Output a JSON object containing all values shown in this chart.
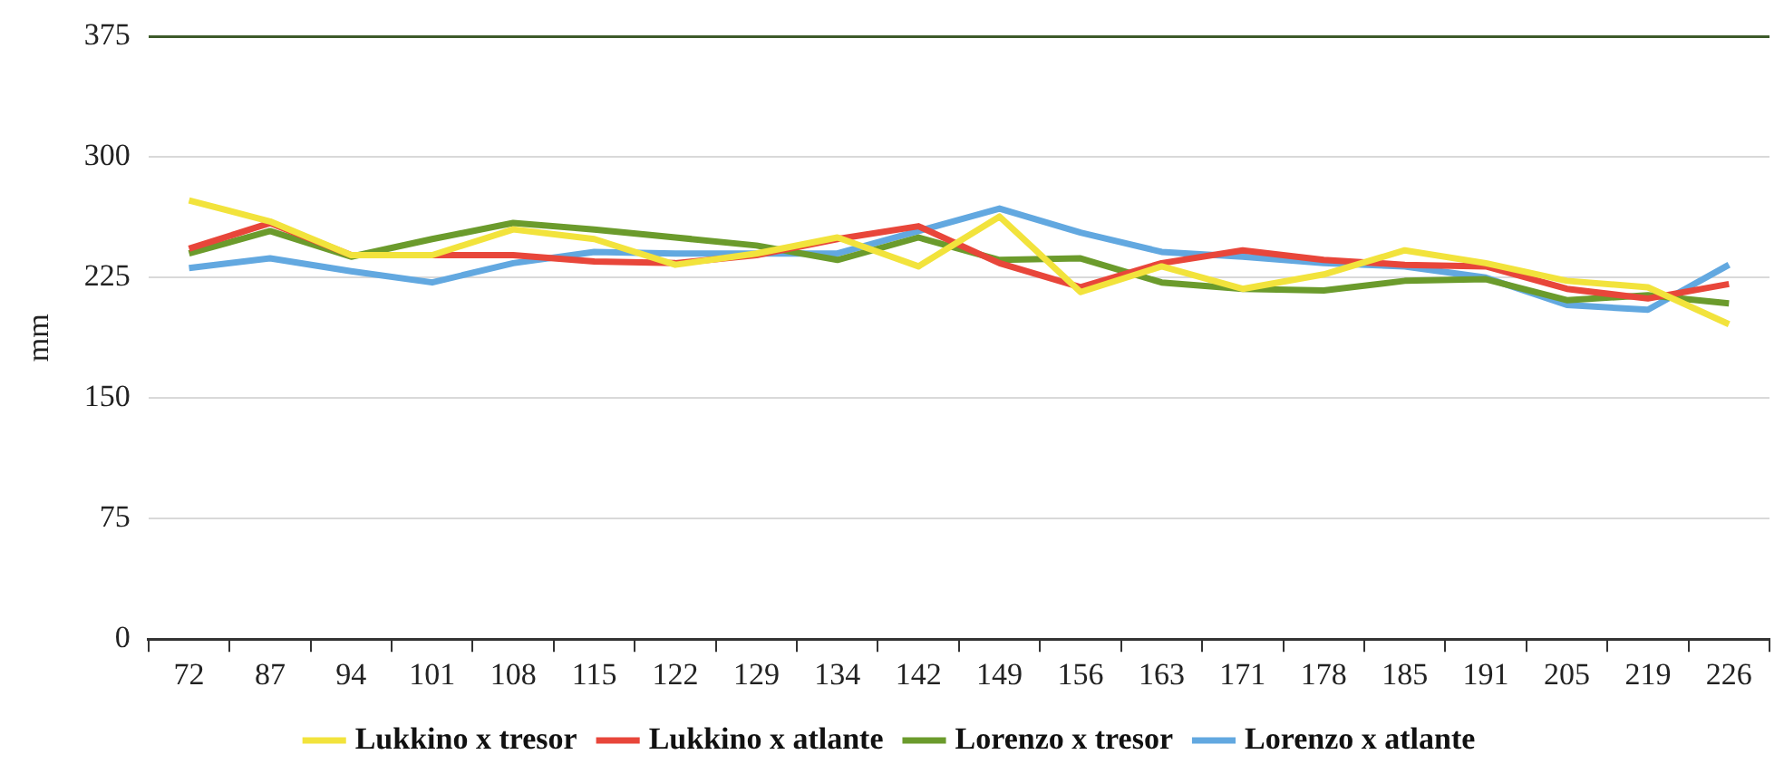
{
  "chart_data": {
    "type": "line",
    "ylabel": "mm",
    "ylim": [
      0,
      375
    ],
    "yticks": [
      0,
      75,
      150,
      225,
      300,
      375
    ],
    "categories": [
      "72",
      "87",
      "94",
      "101",
      "108",
      "115",
      "122",
      "129",
      "134",
      "142",
      "149",
      "156",
      "163",
      "171",
      "178",
      "185",
      "191",
      "205",
      "219",
      "226"
    ],
    "grid": "y",
    "legend": "bottom",
    "marker": "none",
    "line_style": "solid",
    "series": [
      {
        "name": "Lukkino x tresor",
        "color": "#f2e33c",
        "values": [
          273,
          260,
          239,
          239,
          255,
          249,
          233,
          240,
          250,
          232,
          263,
          216,
          232,
          218,
          227,
          242,
          234,
          223,
          219,
          196
        ]
      },
      {
        "name": "Lukkino x atlante",
        "color": "#e8463a",
        "values": [
          243,
          259,
          239,
          239,
          239,
          235,
          234,
          239,
          249,
          257,
          234,
          219,
          234,
          242,
          236,
          233,
          232,
          218,
          212,
          221
        ]
      },
      {
        "name": "Lorenzo x tresor",
        "color": "#6b9b2c",
        "values": [
          240,
          254,
          238,
          249,
          259,
          255,
          250,
          245,
          236,
          250,
          236,
          237,
          222,
          218,
          217,
          223,
          224,
          211,
          214,
          209
        ]
      },
      {
        "name": "Lorenzo x atlante",
        "color": "#62a8e0",
        "values": [
          231,
          237,
          229,
          222,
          234,
          241,
          240,
          240,
          240,
          254,
          268,
          253,
          241,
          238,
          234,
          232,
          225,
          208,
          205,
          233
        ]
      }
    ]
  }
}
